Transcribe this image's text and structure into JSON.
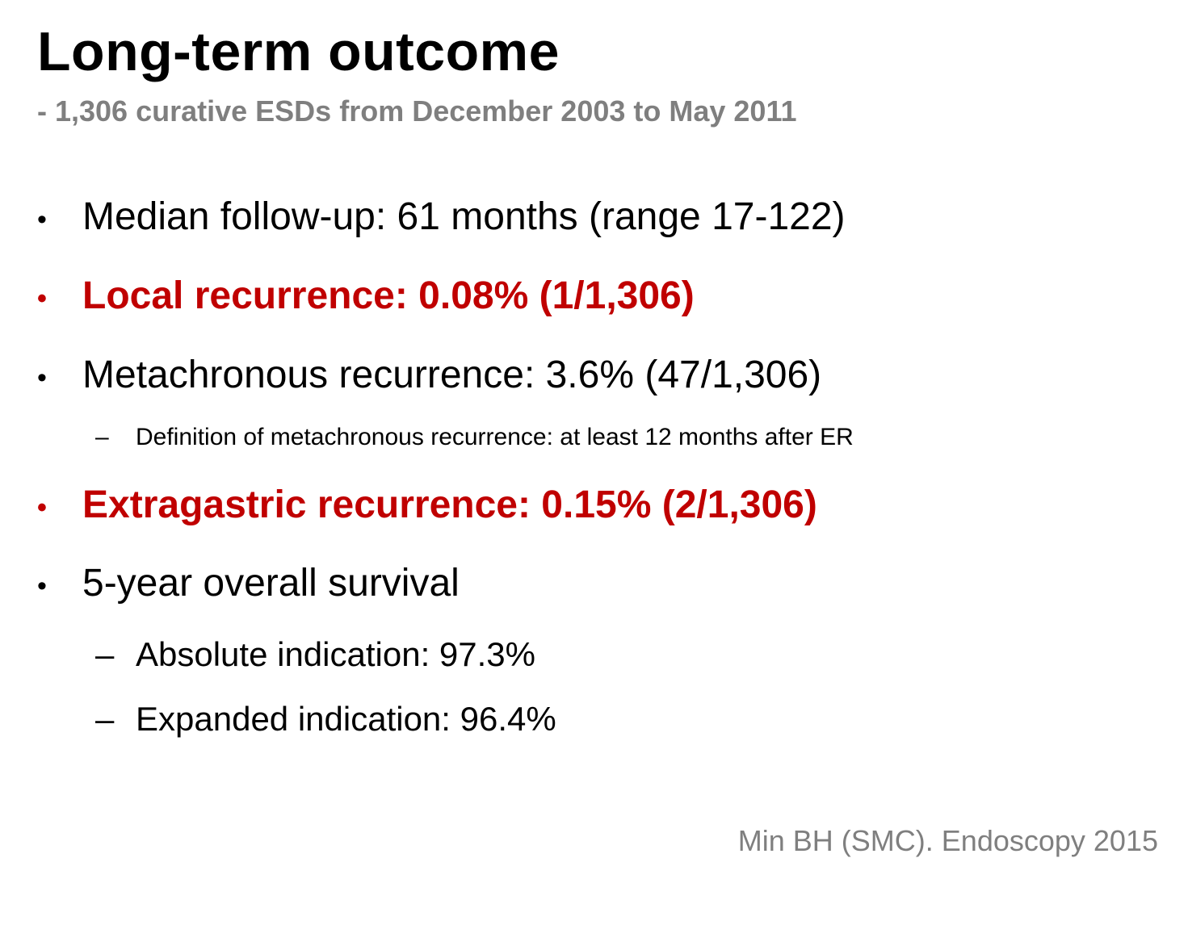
{
  "slide": {
    "title": "Long-term outcome",
    "subtitle": "- 1,306 curative ESDs from December 2003 to May 2011",
    "bullet_marker": "•",
    "sub_marker": "–",
    "bullets": [
      {
        "text": "Median follow-up: 61 months (range 17-122)"
      },
      {
        "text": "Local recurrence: 0.08% (1/1,306)"
      },
      {
        "text": "Metachronous recurrence: 3.6% (47/1,306)"
      },
      {
        "text": "Extragastric recurrence: 0.15% (2/1,306)"
      },
      {
        "text": "5-year overall survival"
      }
    ],
    "sub_bullets": [
      {
        "text": "Definition of metachronous recurrence: at least 12 months after ER"
      },
      {
        "text": "Absolute indication: 97.3%"
      },
      {
        "text": "Expanded indication: 96.4%"
      }
    ],
    "citation": "Min BH (SMC). Endoscopy 2015"
  },
  "colors": {
    "highlight": "#c00000",
    "subtitle": "#7f7f7f",
    "text": "#000000"
  }
}
